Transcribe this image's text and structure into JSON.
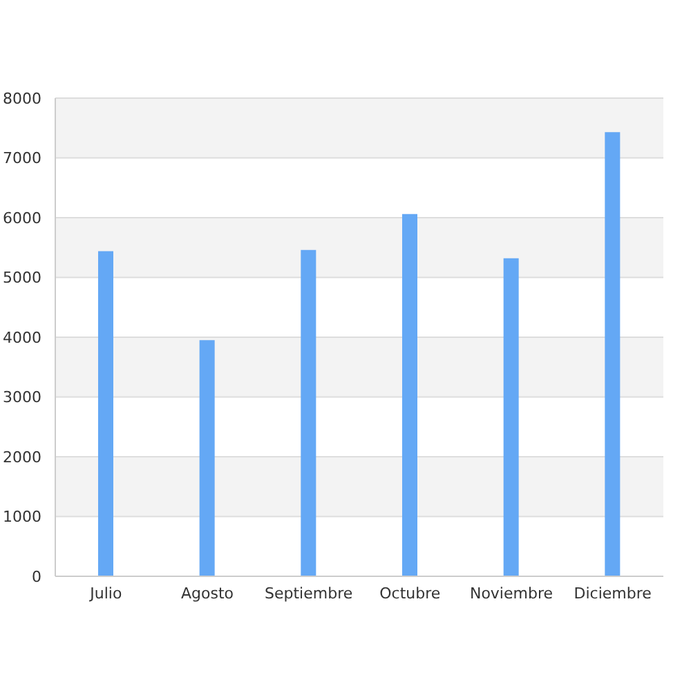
{
  "chart_data": {
    "type": "bar",
    "categories": [
      "Julio",
      "Agosto",
      "Septiembre",
      "Octubre",
      "Noviembre",
      "Diciembre"
    ],
    "values": [
      5440,
      3950,
      5460,
      6060,
      5320,
      7430
    ],
    "color": "#64a8f5",
    "ylim": [
      0,
      8000
    ],
    "yticks": [
      0,
      1000,
      2000,
      3000,
      4000,
      5000,
      6000,
      7000,
      8000
    ],
    "grid": "y"
  }
}
